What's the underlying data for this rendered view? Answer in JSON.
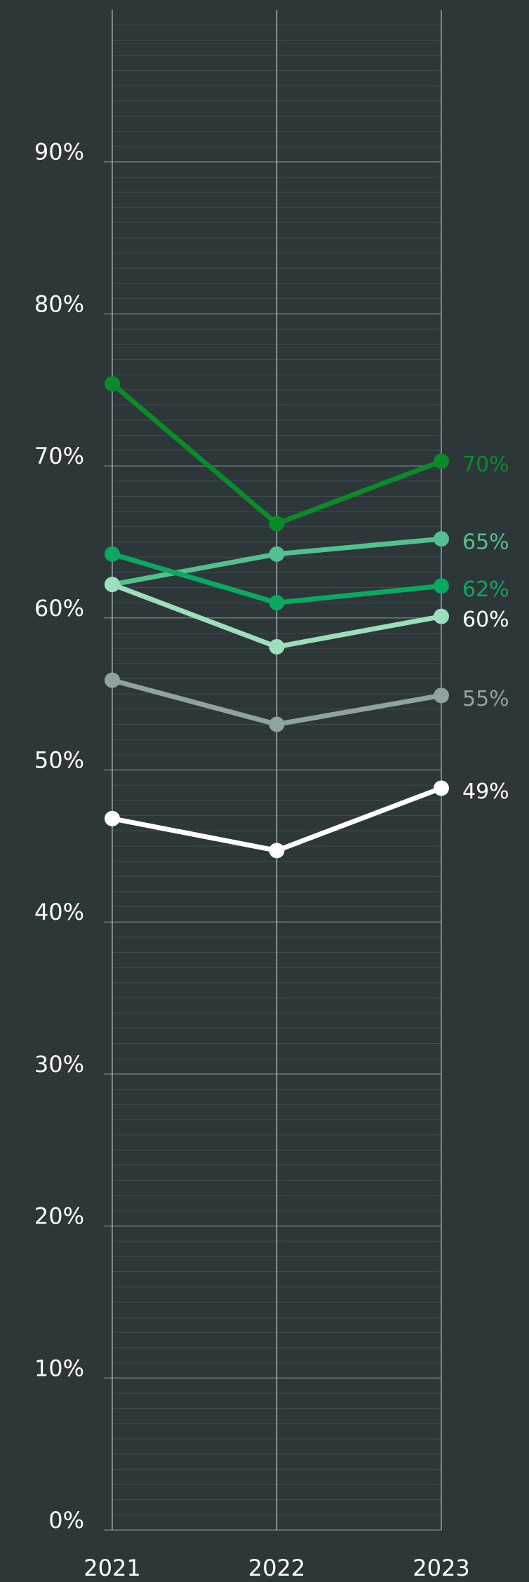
{
  "chart_data": {
    "type": "line",
    "x": [
      "2021",
      "2022",
      "2023"
    ],
    "ylim": [
      0,
      100
    ],
    "yticks": [
      {
        "value": 0,
        "label": "0%"
      },
      {
        "value": 10,
        "label": "10%"
      },
      {
        "value": 20,
        "label": "20%"
      },
      {
        "value": 30,
        "label": "30%"
      },
      {
        "value": 40,
        "label": "40%"
      },
      {
        "value": 50,
        "label": "50%"
      },
      {
        "value": 60,
        "label": "60%"
      },
      {
        "value": 70,
        "label": "70%"
      },
      {
        "value": 80,
        "label": "80%"
      },
      {
        "value": 90,
        "label": "90%"
      }
    ],
    "grid": true,
    "minor_grid_step": 1,
    "series": [
      {
        "color": "#0b8a2a",
        "values": [
          75.4,
          66.2,
          70.3
        ],
        "value_labels": [
          null,
          null,
          "70%"
        ]
      },
      {
        "color": "#52c08f",
        "values": [
          62.2,
          64.2,
          65.2
        ],
        "value_labels": [
          null,
          null,
          "65%"
        ]
      },
      {
        "color": "#0aa860",
        "values": [
          64.2,
          61.0,
          62.1
        ],
        "value_labels": [
          null,
          null,
          "62%"
        ]
      },
      {
        "color": "#9ddfbc",
        "label_color": "#ffffff",
        "values": [
          62.2,
          58.1,
          60.1
        ],
        "value_labels": [
          null,
          null,
          "60%"
        ]
      },
      {
        "color": "#8fa3a3",
        "values": [
          55.9,
          53.0,
          54.9
        ],
        "value_labels": [
          null,
          null,
          "55%"
        ]
      },
      {
        "color": "#ffffff",
        "values": [
          46.8,
          44.7,
          48.8
        ],
        "value_labels": [
          null,
          null,
          "49%"
        ]
      }
    ]
  }
}
